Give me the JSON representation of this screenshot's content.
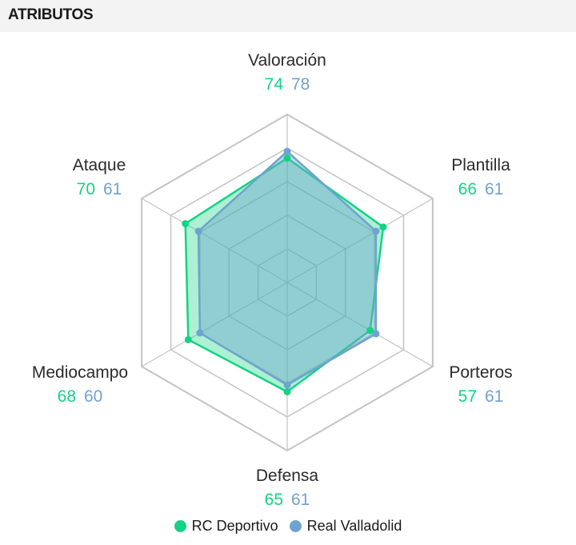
{
  "header": {
    "title": "ATRIBUTOS"
  },
  "colors": {
    "team_a": "#13d383",
    "team_b": "#6fa3cf",
    "grid": "#c4c4c4"
  },
  "chart_data": {
    "type": "radar",
    "title": "ATRIBUTOS",
    "axes": [
      "Valoración",
      "Plantilla",
      "Porteros",
      "Defensa",
      "Mediocampo",
      "Ataque"
    ],
    "range": [
      0,
      100
    ],
    "grid_levels": 5,
    "series": [
      {
        "name": "RC Deportivo",
        "values": [
          74,
          66,
          57,
          65,
          68,
          70
        ]
      },
      {
        "name": "Real Valladolid",
        "values": [
          78,
          61,
          61,
          61,
          60,
          61
        ]
      }
    ],
    "legend": "bottom-center"
  }
}
